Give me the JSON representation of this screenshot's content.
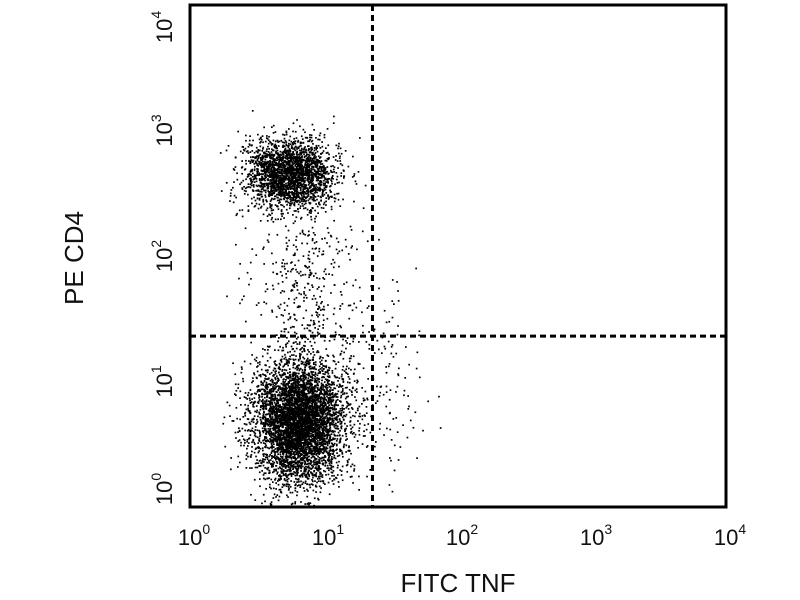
{
  "chart_data": {
    "type": "scatter",
    "title": "",
    "xlabel": "FITC TNF",
    "ylabel": "PE CD4",
    "x_scale": "log",
    "y_scale": "log",
    "xlim": [
      1,
      10000
    ],
    "ylim": [
      1,
      10000
    ],
    "x_ticks": [
      {
        "value": 1,
        "base": "10",
        "exp": "0"
      },
      {
        "value": 10,
        "base": "10",
        "exp": "1"
      },
      {
        "value": 100,
        "base": "10",
        "exp": "2"
      },
      {
        "value": 1000,
        "base": "10",
        "exp": "3"
      },
      {
        "value": 10000,
        "base": "10",
        "exp": "4"
      }
    ],
    "y_ticks": [
      {
        "value": 1,
        "base": "10",
        "exp": "0"
      },
      {
        "value": 10,
        "base": "10",
        "exp": "1"
      },
      {
        "value": 100,
        "base": "10",
        "exp": "2"
      },
      {
        "value": 1000,
        "base": "10",
        "exp": "3"
      },
      {
        "value": 10000,
        "base": "10",
        "exp": "4"
      }
    ],
    "quadrant_gates": {
      "x": 23,
      "y": 23
    },
    "grid": false,
    "populations": [
      {
        "name": "",
        "description": "CD4 low, TNF negative",
        "x_center": 6.5,
        "y_center": 5.0,
        "x_spread_log": 0.17,
        "y_spread_log": 0.24,
        "count": 5200
      },
      {
        "name": "",
        "description": "CD4 high, TNF negative",
        "x_center": 5.5,
        "y_center": 450,
        "x_spread_log": 0.16,
        "y_spread_log": 0.14,
        "count": 2400
      },
      {
        "name": "",
        "description": "bridge between populations",
        "x_center": 7.0,
        "y_center": 60,
        "x_spread_log": 0.2,
        "y_spread_log": 0.35,
        "count": 380
      },
      {
        "name": "",
        "description": "TNF positive tail",
        "x_center": 28,
        "y_center": 8,
        "x_spread_log": 0.15,
        "y_spread_log": 0.4,
        "count": 140
      }
    ],
    "colors": {
      "points": "#000000",
      "axes": "#000000",
      "gates": "#000000"
    }
  }
}
